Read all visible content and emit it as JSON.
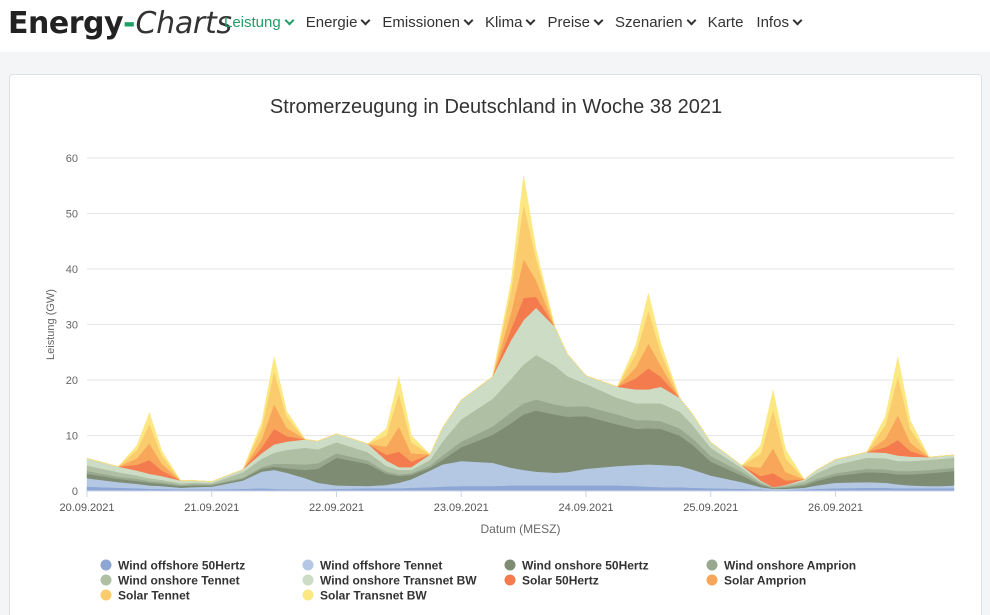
{
  "nav": {
    "brand_main": "Energy",
    "brand_dash": "-",
    "brand_sub": "Charts",
    "items": [
      {
        "label": "Leistung",
        "active": true,
        "dropdown": true
      },
      {
        "label": "Energie",
        "active": false,
        "dropdown": true
      },
      {
        "label": "Emissionen",
        "active": false,
        "dropdown": true
      },
      {
        "label": "Klima",
        "active": false,
        "dropdown": true
      },
      {
        "label": "Preise",
        "active": false,
        "dropdown": true
      },
      {
        "label": "Szenarien",
        "active": false,
        "dropdown": true
      },
      {
        "label": "Karte",
        "active": false,
        "dropdown": false
      },
      {
        "label": "Infos",
        "active": false,
        "dropdown": true
      }
    ]
  },
  "chart_data": {
    "type": "area",
    "stacked": true,
    "title": "Stromerzeugung in Deutschland in Woche 38 2021",
    "xlabel": "Datum (MESZ)",
    "ylabel": "Leistung (GW)",
    "ylim": [
      0,
      60
    ],
    "yticks": [
      0,
      10,
      20,
      30,
      40,
      50,
      60
    ],
    "xlim": [
      0,
      6.95
    ],
    "xticks": [
      {
        "pos": 0,
        "label": "20.09.2021"
      },
      {
        "pos": 1,
        "label": "21.09.2021"
      },
      {
        "pos": 2,
        "label": "22.09.2021"
      },
      {
        "pos": 3,
        "label": "23.09.2021"
      },
      {
        "pos": 4,
        "label": "24.09.2021"
      },
      {
        "pos": 5,
        "label": "25.09.2021"
      },
      {
        "pos": 6,
        "label": "26.09.2021"
      }
    ],
    "x_unit": "days since 20.09.2021 00:00",
    "x": [
      0.0,
      0.25,
      0.4,
      0.5,
      0.6,
      0.75,
      0.85,
      1.0,
      1.25,
      1.4,
      1.5,
      1.6,
      1.75,
      1.85,
      2.0,
      2.25,
      2.4,
      2.5,
      2.6,
      2.75,
      2.85,
      3.0,
      3.25,
      3.4,
      3.5,
      3.6,
      3.75,
      3.85,
      4.0,
      4.25,
      4.4,
      4.5,
      4.6,
      4.75,
      4.85,
      5.0,
      5.25,
      5.4,
      5.5,
      5.6,
      5.75,
      5.85,
      6.0,
      6.25,
      6.4,
      6.5,
      6.6,
      6.75,
      6.85,
      6.95
    ],
    "series": [
      {
        "name": "Wind offshore 50Hertz",
        "color": "#8ea6d4",
        "values": [
          0.8,
          0.6,
          0.5,
          0.4,
          0.4,
          0.3,
          0.3,
          0.3,
          0.4,
          0.5,
          0.4,
          0.3,
          0.3,
          0.3,
          0.4,
          0.5,
          0.5,
          0.5,
          0.6,
          0.7,
          0.8,
          0.9,
          0.9,
          1.0,
          1.0,
          1.0,
          1.0,
          1.0,
          1.0,
          1.0,
          0.9,
          0.8,
          0.7,
          0.7,
          0.6,
          0.5,
          0.4,
          0.3,
          0.2,
          0.2,
          0.3,
          0.4,
          0.5,
          0.6,
          0.6,
          0.5,
          0.5,
          0.5,
          0.5,
          0.5
        ]
      },
      {
        "name": "Wind offshore Tennet",
        "color": "#b4c8e3",
        "values": [
          1.5,
          1.0,
          0.8,
          0.6,
          0.5,
          0.3,
          0.4,
          0.5,
          1.5,
          3.0,
          3.4,
          3.0,
          2.0,
          1.2,
          0.6,
          0.4,
          0.6,
          1.0,
          1.5,
          3.0,
          4.0,
          4.5,
          4.2,
          3.2,
          2.8,
          2.5,
          2.3,
          2.4,
          3.0,
          3.5,
          3.8,
          4.0,
          4.0,
          3.8,
          3.3,
          2.3,
          1.2,
          0.4,
          0.2,
          0.2,
          0.3,
          0.6,
          1.0,
          1.0,
          0.9,
          0.7,
          0.5,
          0.4,
          0.4,
          0.5
        ]
      },
      {
        "name": "Wind onshore 50Hertz",
        "color": "#7d8c73",
        "values": [
          0.8,
          0.6,
          0.5,
          0.5,
          0.4,
          0.3,
          0.3,
          0.2,
          0.3,
          0.5,
          0.6,
          0.8,
          1.5,
          2.5,
          5.0,
          4.0,
          2.0,
          1.2,
          0.8,
          0.5,
          0.8,
          2.5,
          5.0,
          8.0,
          10.0,
          11.0,
          10.5,
          10.0,
          9.5,
          7.5,
          6.5,
          6.5,
          6.5,
          5.5,
          4.5,
          2.5,
          1.2,
          0.4,
          0.1,
          0.2,
          0.4,
          0.8,
          1.2,
          1.8,
          1.8,
          1.8,
          2.0,
          2.3,
          2.5,
          2.6
        ]
      },
      {
        "name": "Wind onshore Amprion",
        "color": "#98a88f",
        "values": [
          0.5,
          0.4,
          0.4,
          0.3,
          0.3,
          0.2,
          0.2,
          0.2,
          0.2,
          0.3,
          0.5,
          0.8,
          1.0,
          1.0,
          0.8,
          0.6,
          0.4,
          0.3,
          0.3,
          0.4,
          0.8,
          1.0,
          1.5,
          2.0,
          2.0,
          2.0,
          1.8,
          1.8,
          1.8,
          1.8,
          1.6,
          1.5,
          1.4,
          1.3,
          1.2,
          1.0,
          0.6,
          0.3,
          0.1,
          0.2,
          0.3,
          0.4,
          0.5,
          0.6,
          0.6,
          0.6,
          0.6,
          0.6,
          0.6,
          0.6
        ]
      },
      {
        "name": "Wind onshore Tennet",
        "color": "#aebfa4",
        "values": [
          1.0,
          0.8,
          0.6,
          0.5,
          0.4,
          0.3,
          0.3,
          0.2,
          1.0,
          1.5,
          2.0,
          2.5,
          3.0,
          2.5,
          2.0,
          1.5,
          1.0,
          0.8,
          0.6,
          1.0,
          2.5,
          4.0,
          5.0,
          6.0,
          7.0,
          8.0,
          7.0,
          5.5,
          4.0,
          3.0,
          3.0,
          3.0,
          3.2,
          3.0,
          2.4,
          1.5,
          0.7,
          0.3,
          0.1,
          0.2,
          0.5,
          1.0,
          1.5,
          2.0,
          2.0,
          1.8,
          1.8,
          1.8,
          1.8,
          1.8
        ]
      },
      {
        "name": "Wind onshore Transnet BW",
        "color": "#cddcc4",
        "values": [
          1.3,
          1.0,
          0.9,
          0.8,
          0.7,
          0.5,
          0.4,
          0.3,
          0.5,
          1.0,
          1.5,
          1.5,
          1.5,
          1.5,
          1.5,
          1.5,
          1.0,
          0.5,
          0.5,
          1.0,
          2.5,
          3.5,
          4.0,
          7.0,
          8.0,
          8.5,
          7.0,
          4.0,
          1.5,
          2.0,
          2.5,
          2.5,
          3.0,
          2.5,
          2.0,
          1.0,
          0.5,
          0.2,
          0.0,
          0.1,
          0.3,
          0.6,
          1.0,
          1.0,
          1.0,
          1.0,
          0.8,
          0.5,
          0.5,
          0.5
        ]
      },
      {
        "name": "Solar 50Hertz",
        "color": "#f47b4e",
        "values": [
          0,
          0,
          1.0,
          2.5,
          1.0,
          0,
          0,
          0,
          0,
          1.0,
          2.8,
          1.0,
          0,
          0,
          0,
          0,
          1.0,
          2.8,
          1.0,
          0,
          0,
          0,
          0,
          2.0,
          4.0,
          2.0,
          0,
          0,
          0,
          0,
          2.0,
          3.8,
          1.8,
          0,
          0,
          0,
          0,
          0.8,
          2.5,
          0.8,
          0,
          0,
          0,
          0,
          1.0,
          2.8,
          1.0,
          0,
          0,
          0
        ]
      },
      {
        "name": "Solar Amprion",
        "color": "#f7a65a",
        "values": [
          0,
          0,
          1.2,
          3.0,
          1.2,
          0,
          0,
          0,
          0,
          1.5,
          4.5,
          1.5,
          0,
          0,
          0,
          0,
          1.5,
          4.5,
          1.5,
          0,
          0,
          0,
          0,
          3.0,
          7.0,
          3.0,
          0,
          0,
          0,
          0,
          2.0,
          4.5,
          2.0,
          0,
          0,
          0,
          0,
          1.5,
          4.5,
          1.5,
          0,
          0,
          0,
          0,
          1.5,
          4.5,
          1.5,
          0,
          0,
          0
        ]
      },
      {
        "name": "Solar Tennet",
        "color": "#fbcc6e",
        "values": [
          0,
          0,
          1.5,
          3.5,
          1.5,
          0,
          0,
          0,
          0,
          2.0,
          6.0,
          2.0,
          0,
          0,
          0,
          0,
          2.0,
          6.0,
          2.0,
          0,
          0,
          0,
          0,
          4.0,
          10.0,
          4.0,
          0,
          0,
          0,
          0,
          2.5,
          6.0,
          2.5,
          0,
          0,
          0,
          0,
          2.5,
          7.0,
          2.5,
          0,
          0,
          0,
          0,
          2.5,
          7.0,
          2.5,
          0,
          0,
          0
        ]
      },
      {
        "name": "Solar Transnet BW",
        "color": "#fbe883",
        "values": [
          0,
          0,
          0.8,
          2.0,
          0.8,
          0,
          0,
          0,
          0,
          1.0,
          2.5,
          1.0,
          0,
          0,
          0,
          0,
          1.2,
          3.0,
          1.2,
          0,
          0,
          0,
          0,
          1.5,
          5.0,
          1.5,
          0,
          0,
          0,
          0,
          1.5,
          3.0,
          1.5,
          0,
          0,
          0,
          0,
          1.5,
          3.5,
          1.5,
          0,
          0,
          0,
          0,
          1.5,
          3.5,
          1.5,
          0,
          0,
          0
        ]
      }
    ],
    "legend_position": "bottom"
  }
}
